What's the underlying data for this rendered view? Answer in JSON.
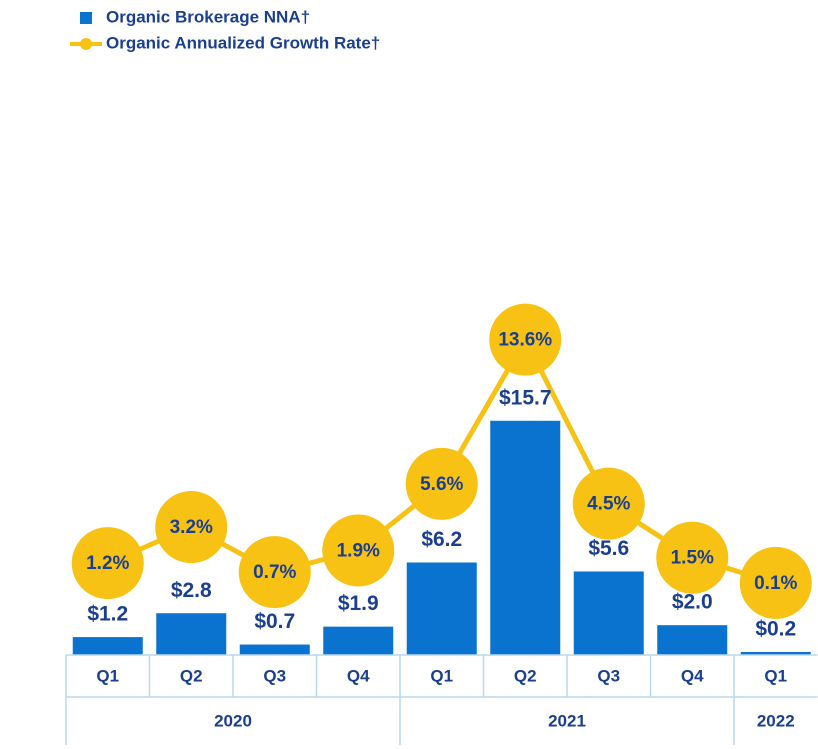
{
  "chart_data": {
    "type": "bar_line",
    "categories": [
      "Q1",
      "Q2",
      "Q3",
      "Q4",
      "Q1",
      "Q2",
      "Q3",
      "Q4",
      "Q1"
    ],
    "groups": [
      {
        "label": "2020",
        "count": 4
      },
      {
        "label": "2021",
        "count": 4
      },
      {
        "label": "2022",
        "count": 1
      }
    ],
    "series": [
      {
        "name": "Organic Brokerage NNA†",
        "type": "bar",
        "color": "#0a73cf",
        "values": [
          1.2,
          2.8,
          0.7,
          1.9,
          6.2,
          15.7,
          5.6,
          2.0,
          0.2
        ],
        "value_labels": [
          "$1.2",
          "$2.8",
          "$0.7",
          "$1.9",
          "$6.2",
          "$15.7",
          "$5.6",
          "$2.0",
          "$0.2"
        ]
      },
      {
        "name": "Organic Annualized Growth Rate†",
        "type": "line",
        "axis": "y2",
        "color": "#f7c214",
        "values": [
          1.2,
          3.2,
          0.7,
          1.9,
          5.6,
          13.6,
          4.5,
          1.5,
          0.1
        ],
        "value_labels": [
          "1.2%",
          "3.2%",
          "0.7%",
          "1.9%",
          "5.6%",
          "13.6%",
          "4.5%",
          "1.5%",
          "0.1%"
        ]
      }
    ],
    "ylim": [
      0,
      37.2
    ],
    "y2lim": [
      -3.9,
      26.9
    ],
    "legend": "top-left"
  }
}
